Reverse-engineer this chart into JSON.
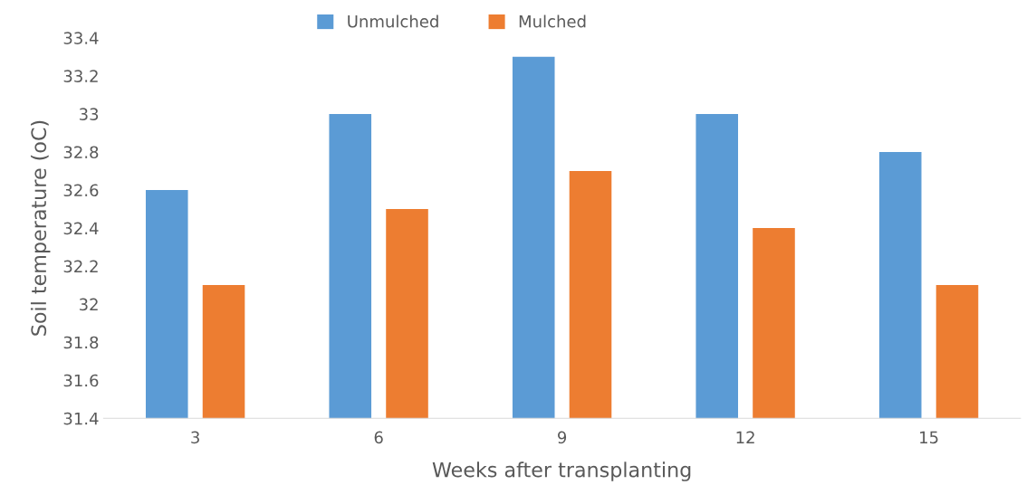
{
  "chart_data": {
    "type": "bar",
    "xlabel": "Weeks after transplanting",
    "ylabel": "Soil temperature (oC)",
    "categories": [
      "3",
      "6",
      "9",
      "12",
      "15"
    ],
    "series": [
      {
        "name": "Unmulched",
        "color": "#5b9bd5",
        "values": [
          32.6,
          33.0,
          33.3,
          33.0,
          32.8
        ]
      },
      {
        "name": "Mulched",
        "color": "#ed7d31",
        "values": [
          32.1,
          32.5,
          32.7,
          32.4,
          32.1
        ]
      }
    ],
    "ylim": [
      31.4,
      33.4
    ],
    "yticks": [
      31.4,
      31.6,
      31.8,
      32,
      32.2,
      32.4,
      32.6,
      32.8,
      33,
      33.2,
      33.4
    ],
    "grid": false,
    "legend": "top"
  }
}
